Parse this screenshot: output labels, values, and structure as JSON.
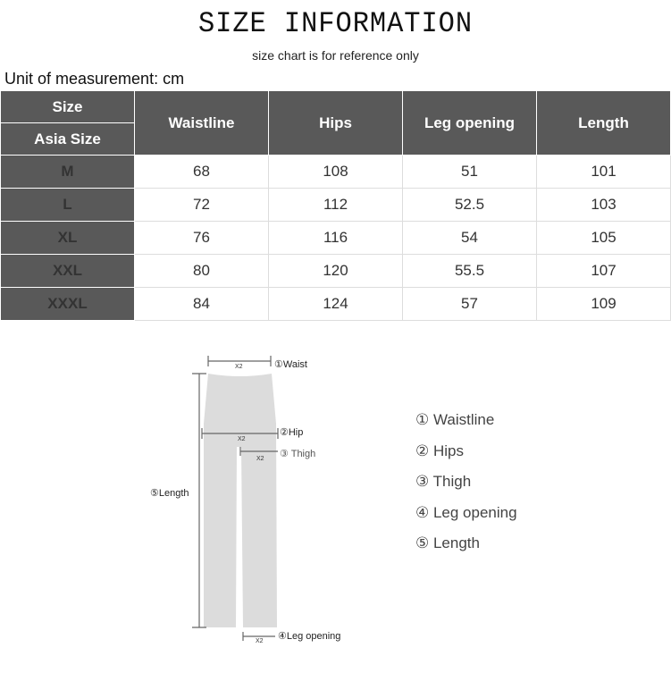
{
  "title": "SIZE INFORMATION",
  "subtitle": "size chart is for reference only",
  "unit_label": "Unit of measurement: cm",
  "table": {
    "size_header": "Size",
    "asia_size_header": "Asia Size",
    "columns": [
      "Waistline",
      "Hips",
      "Leg opening",
      "Length"
    ],
    "rows": [
      {
        "size": "M",
        "values": [
          "68",
          "108",
          "51",
          "101"
        ]
      },
      {
        "size": "L",
        "values": [
          "72",
          "112",
          "52.5",
          "103"
        ]
      },
      {
        "size": "XL",
        "values": [
          "76",
          "116",
          "54",
          "105"
        ]
      },
      {
        "size": "XXL",
        "values": [
          "80",
          "120",
          "55.5",
          "107"
        ]
      },
      {
        "size": "XXXL",
        "values": [
          "84",
          "124",
          "57",
          "109"
        ]
      }
    ],
    "header_color": "#595959"
  },
  "diagram": {
    "waist": "①Waist",
    "hip": "②Hip",
    "thigh": "③ Thigh",
    "leg_opening": "④Leg opening",
    "length": "⑤Length",
    "x2": "X2"
  },
  "legend": [
    "① Waistline",
    "② Hips",
    "③ Thigh",
    "④ Leg opening",
    "⑤ Length"
  ]
}
